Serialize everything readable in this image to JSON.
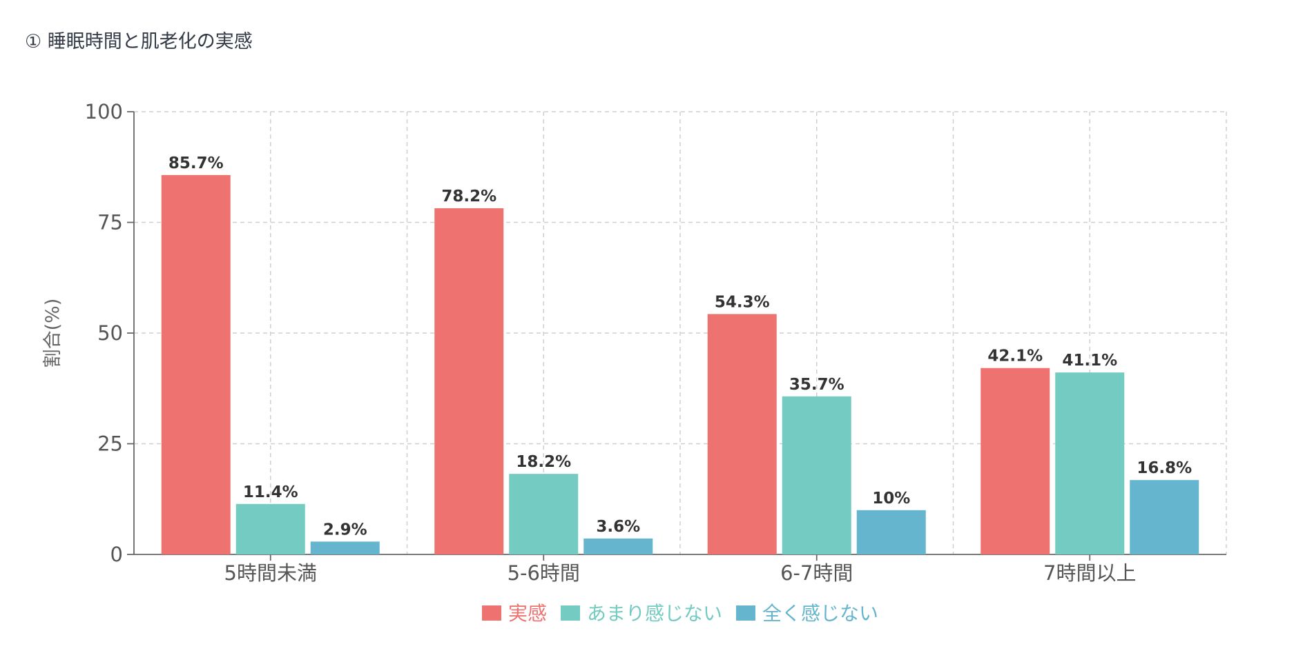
{
  "title": "① 睡眠時間と肌老化の実感",
  "chart_data": {
    "type": "bar",
    "categories": [
      "5時間未満",
      "5-6時間",
      "6-7時間",
      "7時間以上"
    ],
    "series": [
      {
        "name": "実感",
        "color": "#ee7370",
        "values": [
          85.7,
          78.2,
          54.3,
          42.1
        ],
        "labels": [
          "85.7%",
          "78.2%",
          "54.3%",
          "42.1%"
        ]
      },
      {
        "name": "あまり感じない",
        "color": "#74cbc1",
        "values": [
          11.4,
          18.2,
          35.7,
          41.1
        ],
        "labels": [
          "11.4%",
          "18.2%",
          "35.7%",
          "41.1%"
        ]
      },
      {
        "name": "全く感じない",
        "color": "#65b5cf",
        "values": [
          2.9,
          3.6,
          10,
          16.8
        ],
        "labels": [
          "2.9%",
          "3.6%",
          "10%",
          "16.8%"
        ]
      }
    ],
    "xlabel": "",
    "ylabel": "割合(%)",
    "ylim": [
      0,
      100
    ],
    "yticks": [
      0,
      25,
      50,
      75,
      100
    ],
    "grid": true,
    "legend_position": "bottom"
  }
}
